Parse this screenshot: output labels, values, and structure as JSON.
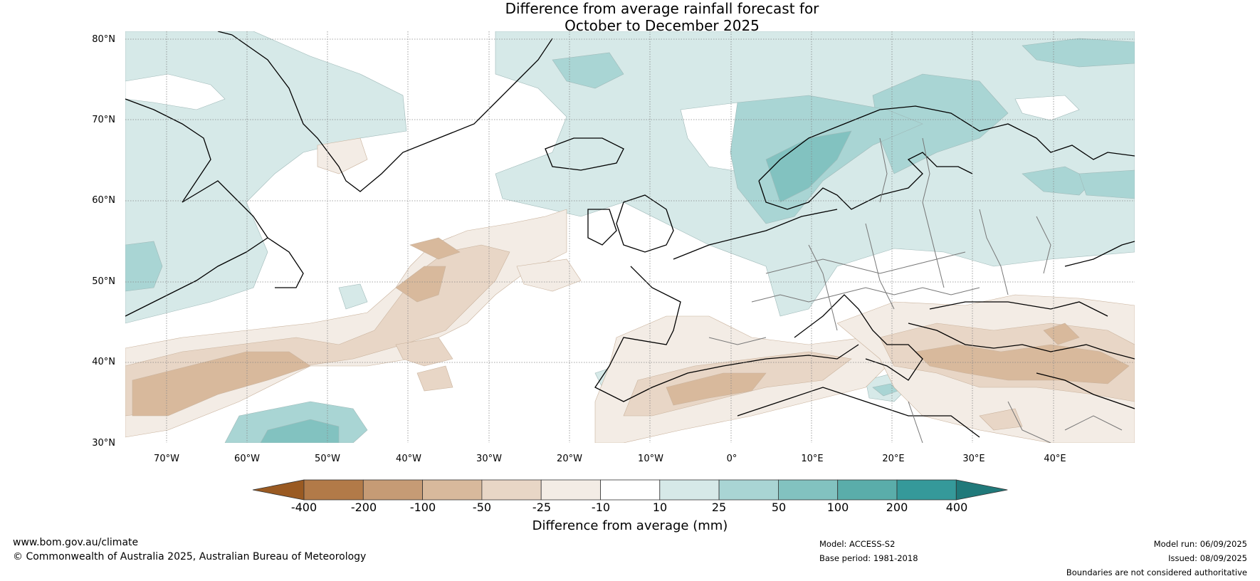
{
  "title_line1": "Difference from average rainfall forecast for",
  "title_line2": "October to December 2025",
  "latitude_labels": [
    "80°N",
    "70°N",
    "60°N",
    "50°N",
    "40°N",
    "30°N"
  ],
  "longitude_labels": [
    "70°W",
    "60°W",
    "50°W",
    "40°W",
    "30°W",
    "20°W",
    "10°W",
    "0°",
    "10°E",
    "20°E",
    "30°E",
    "40°E"
  ],
  "colorbar": {
    "title": "Difference from average (mm)",
    "tick_labels": [
      "-400",
      "-200",
      "-100",
      "-50",
      "-25",
      "-10",
      "10",
      "25",
      "50",
      "100",
      "200",
      "400"
    ],
    "colors": [
      "#9a5a22",
      "#b27a48",
      "#c69b75",
      "#d8b99c",
      "#e8d6c6",
      "#f3ece5",
      "#ffffff",
      "#d6e9e8",
      "#a9d5d4",
      "#82c2c0",
      "#5aadaa",
      "#35999a",
      "#20797a"
    ],
    "extend": "both"
  },
  "footer": {
    "website": "www.bom.gov.au/climate",
    "copyright": "© Commonwealth of Australia 2025, Australian Bureau of Meteorology",
    "model": "Model: ACCESS-S2",
    "base_period": "Base period: 1981-2018",
    "model_run": "Model run: 06/09/2025",
    "issued": "Issued: 08/09/2025",
    "disclaimer": "Boundaries are not considered authoritative"
  }
}
